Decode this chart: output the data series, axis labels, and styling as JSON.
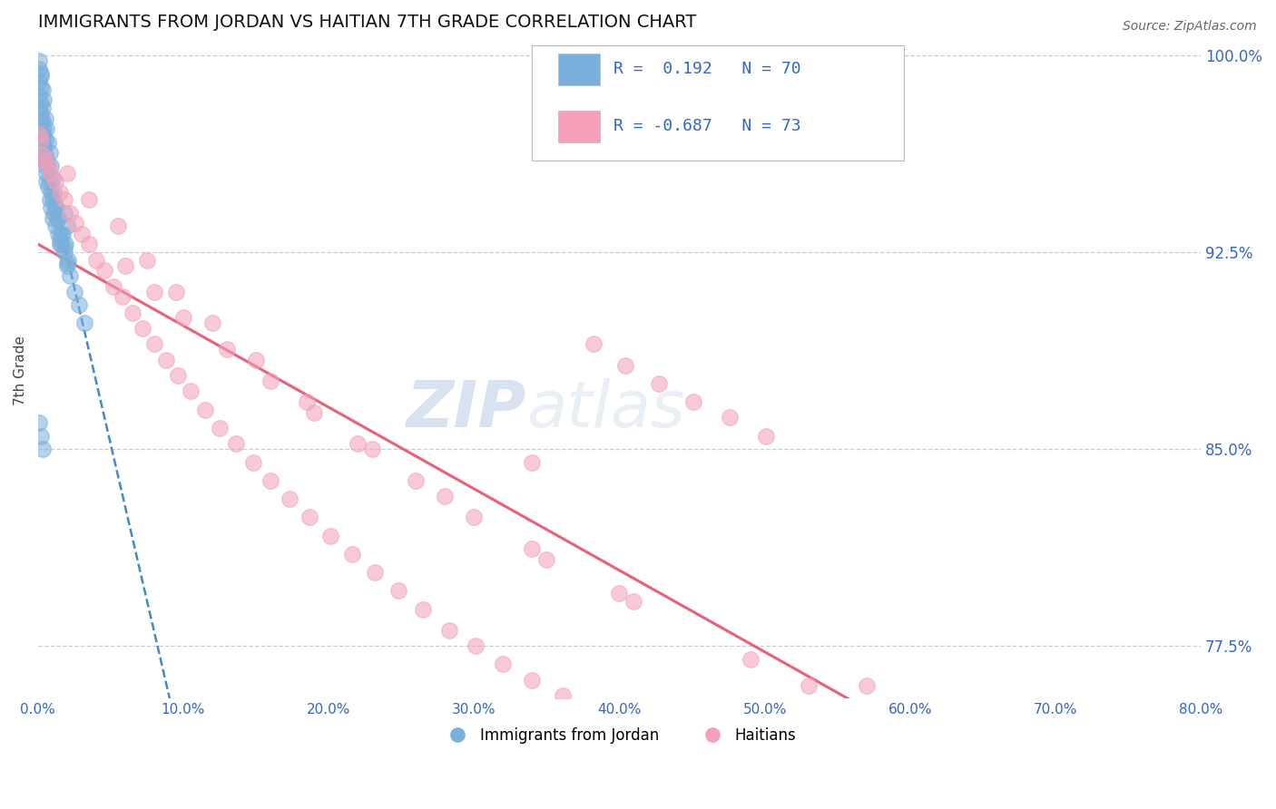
{
  "title": "IMMIGRANTS FROM JORDAN VS HAITIAN 7TH GRADE CORRELATION CHART",
  "source_text": "Source: ZipAtlas.com",
  "ylabel_left": "7th Grade",
  "legend_label_1": "Immigrants from Jordan",
  "legend_label_2": "Haitians",
  "R1": 0.192,
  "N1": 70,
  "R2": -0.687,
  "N2": 73,
  "xlim": [
    0.0,
    0.8
  ],
  "ylim": [
    0.755,
    1.005
  ],
  "ytick_labels_right": [
    "77.5%",
    "85.0%",
    "92.5%",
    "100.0%"
  ],
  "ytick_vals_right": [
    0.775,
    0.85,
    0.925,
    1.0
  ],
  "xticks": [
    0.0,
    0.1,
    0.2,
    0.3,
    0.4,
    0.5,
    0.6,
    0.7,
    0.8
  ],
  "xtick_labels": [
    "0.0%",
    "10.0%",
    "20.0%",
    "30.0%",
    "40.0%",
    "50.0%",
    "60.0%",
    "70.0%",
    "80.0%"
  ],
  "color_jordan": "#7ab0dc",
  "color_haitian": "#f4a0b8",
  "color_jordan_line": "#4488cc",
  "color_haitian_line": "#e8607a",
  "color_axis_labels": "#3366cc",
  "color_grid": "#ccccdd",
  "background_color": "#ffffff",
  "watermark_zip": "ZIP",
  "watermark_atlas": "atlas",
  "jordan_x": [
    0.001,
    0.001,
    0.001,
    0.002,
    0.002,
    0.002,
    0.002,
    0.003,
    0.003,
    0.003,
    0.003,
    0.004,
    0.004,
    0.004,
    0.005,
    0.005,
    0.005,
    0.006,
    0.006,
    0.006,
    0.007,
    0.007,
    0.008,
    0.008,
    0.009,
    0.009,
    0.01,
    0.01,
    0.011,
    0.012,
    0.012,
    0.013,
    0.014,
    0.015,
    0.016,
    0.017,
    0.018,
    0.019,
    0.02,
    0.021,
    0.001,
    0.002,
    0.003,
    0.004,
    0.005,
    0.006,
    0.007,
    0.008,
    0.009,
    0.01,
    0.011,
    0.012,
    0.014,
    0.016,
    0.018,
    0.02,
    0.022,
    0.025,
    0.028,
    0.032,
    0.001,
    0.002,
    0.003,
    0.004,
    0.001,
    0.002,
    0.003,
    0.015,
    0.02,
    0.018
  ],
  "jordan_y": [
    0.99,
    0.985,
    0.995,
    0.988,
    0.982,
    0.978,
    0.992,
    0.975,
    0.97,
    0.98,
    0.968,
    0.972,
    0.965,
    0.96,
    0.968,
    0.962,
    0.958,
    0.96,
    0.955,
    0.952,
    0.958,
    0.95,
    0.952,
    0.945,
    0.948,
    0.942,
    0.945,
    0.938,
    0.94,
    0.942,
    0.935,
    0.938,
    0.932,
    0.93,
    0.928,
    0.932,
    0.925,
    0.928,
    0.92,
    0.922,
    0.998,
    0.993,
    0.987,
    0.983,
    0.976,
    0.972,
    0.967,
    0.963,
    0.958,
    0.953,
    0.948,
    0.943,
    0.938,
    0.932,
    0.927,
    0.921,
    0.916,
    0.91,
    0.905,
    0.898,
    0.98,
    0.975,
    0.97,
    0.965,
    0.86,
    0.855,
    0.85,
    0.928,
    0.935,
    0.94
  ],
  "haitian_x": [
    0.001,
    0.002,
    0.003,
    0.005,
    0.007,
    0.009,
    0.012,
    0.015,
    0.018,
    0.022,
    0.026,
    0.03,
    0.035,
    0.04,
    0.046,
    0.052,
    0.058,
    0.065,
    0.072,
    0.08,
    0.088,
    0.096,
    0.105,
    0.115,
    0.125,
    0.136,
    0.148,
    0.16,
    0.173,
    0.187,
    0.201,
    0.216,
    0.232,
    0.248,
    0.265,
    0.283,
    0.301,
    0.32,
    0.34,
    0.361,
    0.382,
    0.404,
    0.427,
    0.451,
    0.476,
    0.501,
    0.06,
    0.08,
    0.1,
    0.13,
    0.16,
    0.19,
    0.22,
    0.26,
    0.3,
    0.35,
    0.4,
    0.02,
    0.035,
    0.055,
    0.075,
    0.095,
    0.12,
    0.15,
    0.185,
    0.23,
    0.28,
    0.34,
    0.41,
    0.49,
    0.57,
    0.34,
    0.53
  ],
  "haitian_y": [
    0.97,
    0.968,
    0.962,
    0.96,
    0.958,
    0.955,
    0.952,
    0.948,
    0.945,
    0.94,
    0.936,
    0.932,
    0.928,
    0.922,
    0.918,
    0.912,
    0.908,
    0.902,
    0.896,
    0.89,
    0.884,
    0.878,
    0.872,
    0.865,
    0.858,
    0.852,
    0.845,
    0.838,
    0.831,
    0.824,
    0.817,
    0.81,
    0.803,
    0.796,
    0.789,
    0.781,
    0.775,
    0.768,
    0.762,
    0.756,
    0.89,
    0.882,
    0.875,
    0.868,
    0.862,
    0.855,
    0.92,
    0.91,
    0.9,
    0.888,
    0.876,
    0.864,
    0.852,
    0.838,
    0.824,
    0.808,
    0.795,
    0.955,
    0.945,
    0.935,
    0.922,
    0.91,
    0.898,
    0.884,
    0.868,
    0.85,
    0.832,
    0.812,
    0.792,
    0.77,
    0.76,
    0.845,
    0.76
  ]
}
